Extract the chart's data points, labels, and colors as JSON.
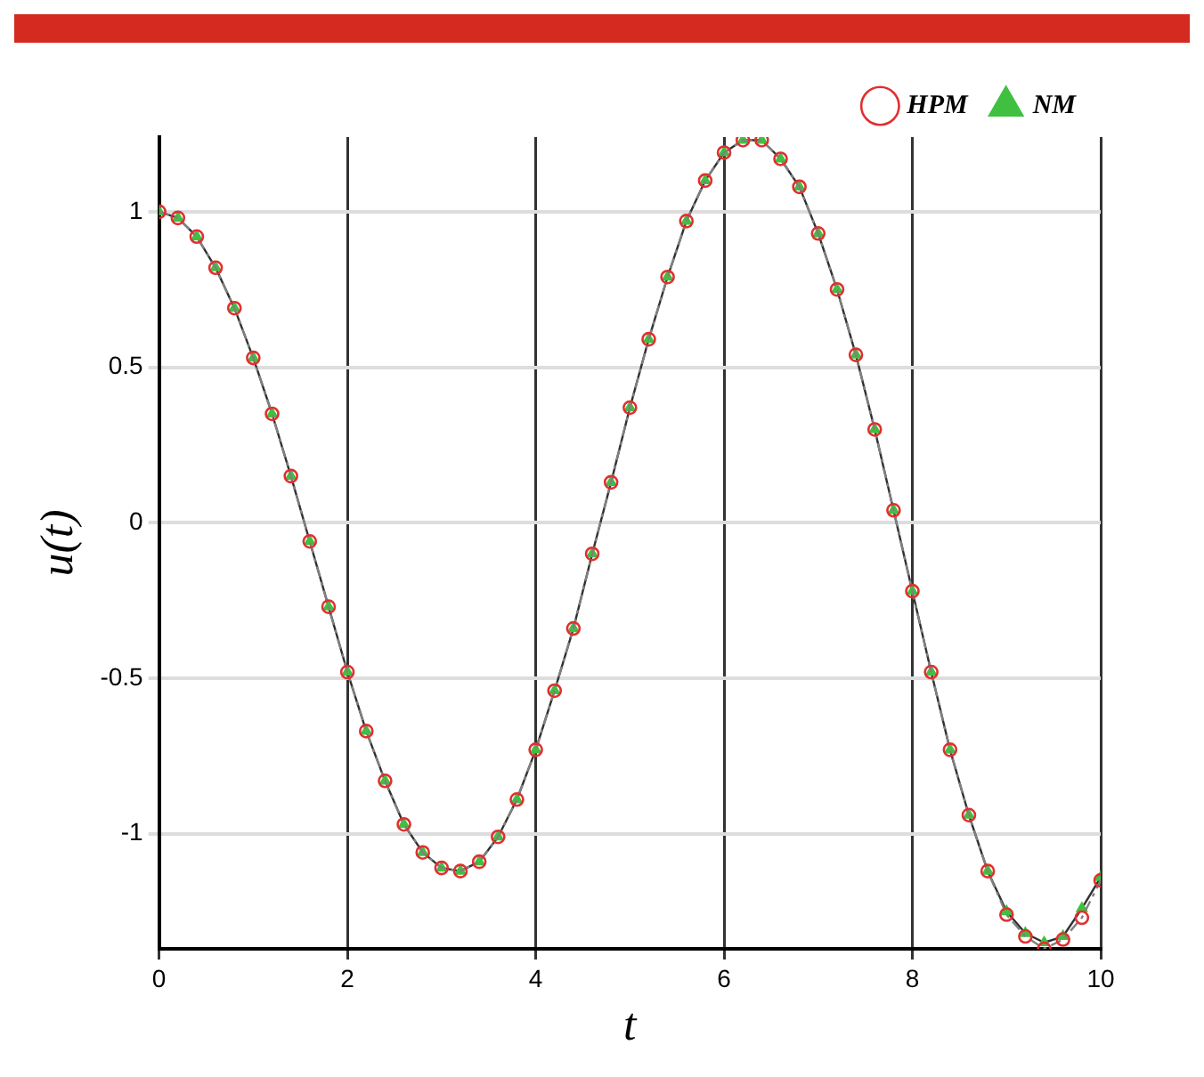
{
  "chart_data": {
    "type": "line",
    "xlabel": "t",
    "ylabel": "u(t)",
    "x": [
      0,
      0.2,
      0.4,
      0.6,
      0.8,
      1,
      1.2,
      1.4,
      1.6,
      1.8,
      2,
      2.2,
      2.4,
      2.6,
      2.8,
      3,
      3.2,
      3.4,
      3.6,
      3.8,
      4,
      4.2,
      4.4,
      4.6,
      4.8,
      5,
      5.2,
      5.4,
      5.6,
      5.8,
      6,
      6.2,
      6.4,
      6.6,
      6.8,
      7,
      7.2,
      7.4,
      7.6,
      7.8,
      8,
      8.2,
      8.4,
      8.6,
      8.8,
      9,
      9.2,
      9.4,
      9.6,
      9.8,
      10
    ],
    "series": [
      {
        "name": "HPM",
        "color": "#e03030",
        "line_style": "dashdot",
        "marker": "circle",
        "values": [
          1,
          0.98,
          0.92,
          0.82,
          0.69,
          0.53,
          0.35,
          0.15,
          -0.06,
          -0.27,
          -0.48,
          -0.67,
          -0.83,
          -0.97,
          -1.06,
          -1.11,
          -1.12,
          -1.09,
          -1.01,
          -0.89,
          -0.73,
          -0.54,
          -0.34,
          -0.1,
          0.13,
          0.37,
          0.59,
          0.79,
          0.97,
          1.1,
          1.19,
          1.23,
          1.23,
          1.17,
          1.08,
          0.93,
          0.75,
          0.54,
          0.3,
          0.04,
          -0.22,
          -0.48,
          -0.73,
          -0.94,
          -1.12,
          -1.26,
          -1.33,
          -1.37,
          -1.34,
          -1.27,
          -1.15
        ]
      },
      {
        "name": "NM",
        "color": "#40c040",
        "line_style": "solid",
        "marker": "triangle",
        "values": [
          1,
          0.98,
          0.92,
          0.82,
          0.69,
          0.53,
          0.35,
          0.15,
          -0.06,
          -0.27,
          -0.48,
          -0.67,
          -0.83,
          -0.97,
          -1.06,
          -1.11,
          -1.12,
          -1.09,
          -1.01,
          -0.89,
          -0.73,
          -0.54,
          -0.34,
          -0.1,
          0.13,
          0.37,
          0.59,
          0.79,
          0.97,
          1.1,
          1.19,
          1.23,
          1.23,
          1.17,
          1.08,
          0.93,
          0.75,
          0.54,
          0.3,
          0.04,
          -0.22,
          -0.48,
          -0.73,
          -0.94,
          -1.12,
          -1.25,
          -1.32,
          -1.35,
          -1.33,
          -1.24,
          -1.14
        ]
      }
    ],
    "xlim": [
      0,
      10
    ],
    "xticks": [
      0,
      2,
      4,
      6,
      8,
      10
    ],
    "ylim": [
      -1.37,
      1.24
    ],
    "yticks": [
      -1,
      -0.5,
      0,
      0.5,
      1
    ],
    "grid": true,
    "legend": "top right"
  }
}
